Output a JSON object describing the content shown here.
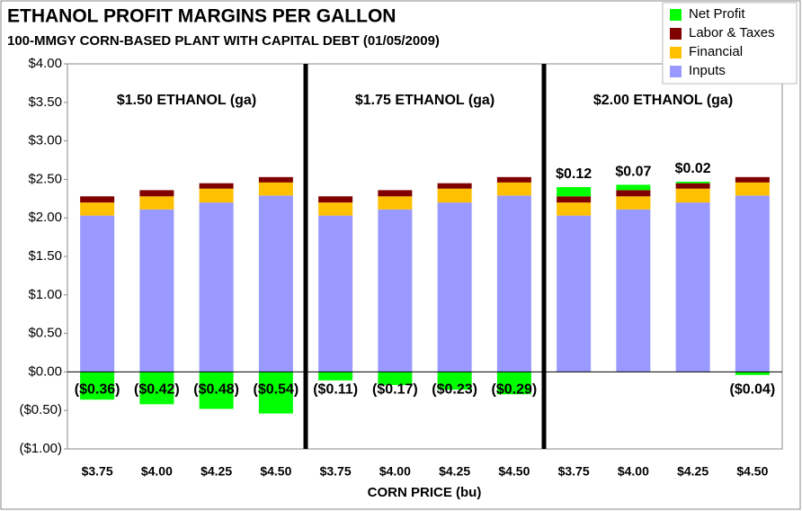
{
  "chart_data": {
    "type": "stacked_bar",
    "title": "ETHANOL PROFIT MARGINS PER GALLON",
    "subtitle": "100-MMGY CORN-BASED PLANT WITH CAPITAL DEBT (01/05/2009)",
    "x_label": "CORN PRICE (bu)",
    "panel_labels": [
      "$1.50 ETHANOL (ga)",
      "$1.75 ETHANOL (ga)",
      "$2.00 ETHANOL (ga)"
    ],
    "categories": [
      "$3.75",
      "$4.00",
      "$4.25",
      "$4.50",
      "$3.75",
      "$4.00",
      "$4.25",
      "$4.50",
      "$3.75",
      "$4.00",
      "$4.25",
      "$4.50"
    ],
    "series": [
      {
        "name": "Inputs",
        "color": "#9999ff",
        "values": [
          2.03,
          2.11,
          2.2,
          2.29,
          2.03,
          2.11,
          2.2,
          2.29,
          2.03,
          2.11,
          2.2,
          2.29
        ]
      },
      {
        "name": "Financial",
        "color": "#ffc000",
        "values": [
          0.17,
          0.17,
          0.18,
          0.17,
          0.17,
          0.17,
          0.18,
          0.17,
          0.17,
          0.17,
          0.18,
          0.17
        ]
      },
      {
        "name": "Labor & Taxes",
        "color": "#800000",
        "values": [
          0.08,
          0.08,
          0.07,
          0.07,
          0.08,
          0.08,
          0.07,
          0.07,
          0.08,
          0.08,
          0.07,
          0.07
        ]
      },
      {
        "name": "Net Profit",
        "color": "#00ff00",
        "values": [
          -0.36,
          -0.42,
          -0.48,
          -0.54,
          -0.11,
          -0.17,
          -0.23,
          -0.29,
          0.12,
          0.07,
          0.02,
          -0.04
        ],
        "value_labels": [
          "($0.36)",
          "($0.42)",
          "($0.48)",
          "($0.54)",
          "($0.11)",
          "($0.17)",
          "($0.23)",
          "($0.29)",
          "$0.12",
          "$0.07",
          "$0.02",
          "($0.04)"
        ]
      }
    ],
    "ylim": [
      -1,
      4
    ],
    "yticks": [
      {
        "value": 4,
        "label": "$4.00"
      },
      {
        "value": 3.5,
        "label": "$3.50"
      },
      {
        "value": 3,
        "label": "$3.00"
      },
      {
        "value": 2.5,
        "label": "$2.50"
      },
      {
        "value": 2,
        "label": "$2.00"
      },
      {
        "value": 1.5,
        "label": "$1.50"
      },
      {
        "value": 1,
        "label": "$1.00"
      },
      {
        "value": 0.5,
        "label": "$0.50"
      },
      {
        "value": 0,
        "label": "$0.00"
      },
      {
        "value": -0.5,
        "label": "($0.50)"
      },
      {
        "value": -1,
        "label": "($1.00)"
      }
    ],
    "negative_tick_color": "#c00000",
    "grid": false,
    "legend": "top-right"
  }
}
